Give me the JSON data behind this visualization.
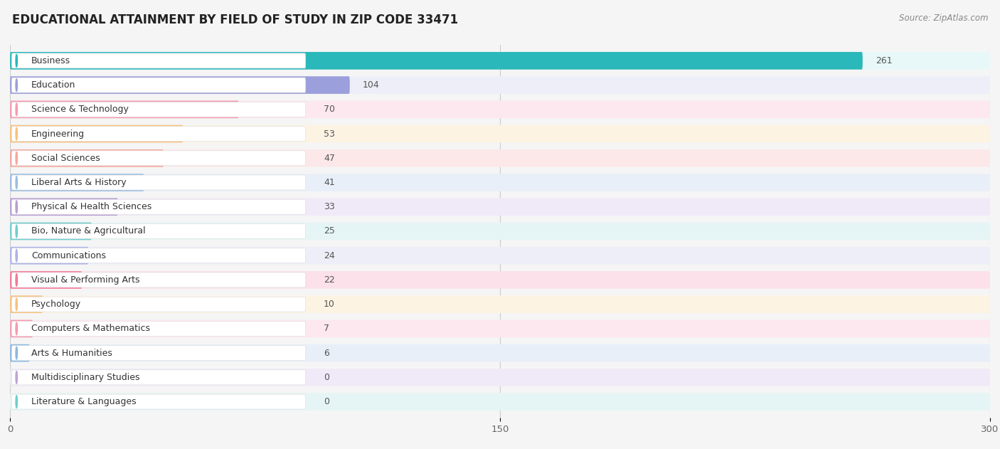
{
  "title": "EDUCATIONAL ATTAINMENT BY FIELD OF STUDY IN ZIP CODE 33471",
  "source": "Source: ZipAtlas.com",
  "categories": [
    "Business",
    "Education",
    "Science & Technology",
    "Engineering",
    "Social Sciences",
    "Liberal Arts & History",
    "Physical & Health Sciences",
    "Bio, Nature & Agricultural",
    "Communications",
    "Visual & Performing Arts",
    "Psychology",
    "Computers & Mathematics",
    "Arts & Humanities",
    "Multidisciplinary Studies",
    "Literature & Languages"
  ],
  "values": [
    261,
    104,
    70,
    53,
    47,
    41,
    33,
    25,
    24,
    22,
    10,
    7,
    6,
    0,
    0
  ],
  "bar_colors": [
    "#2ab8ba",
    "#9b9fdb",
    "#f59bb0",
    "#f7c27e",
    "#f5a89e",
    "#9bbde0",
    "#b89fd4",
    "#6ecece",
    "#adb3e8",
    "#f47898",
    "#f7c27e",
    "#f59bb0",
    "#8eb8e0",
    "#bfa3d4",
    "#6ecece"
  ],
  "row_bg_colors": [
    "#e8f8f8",
    "#eeeef8",
    "#fce8ee",
    "#fdf3e3",
    "#fce8e8",
    "#e8eff8",
    "#f0eaf8",
    "#e5f5f5",
    "#eeeef8",
    "#fce0ea",
    "#fdf3e3",
    "#fce8ee",
    "#e8eff8",
    "#f0eaf8",
    "#e5f5f5"
  ],
  "xlim": [
    0,
    300
  ],
  "xticks": [
    0,
    150,
    300
  ],
  "background_color": "#f5f5f5",
  "title_fontsize": 12,
  "label_fontsize": 9,
  "value_fontsize": 9
}
